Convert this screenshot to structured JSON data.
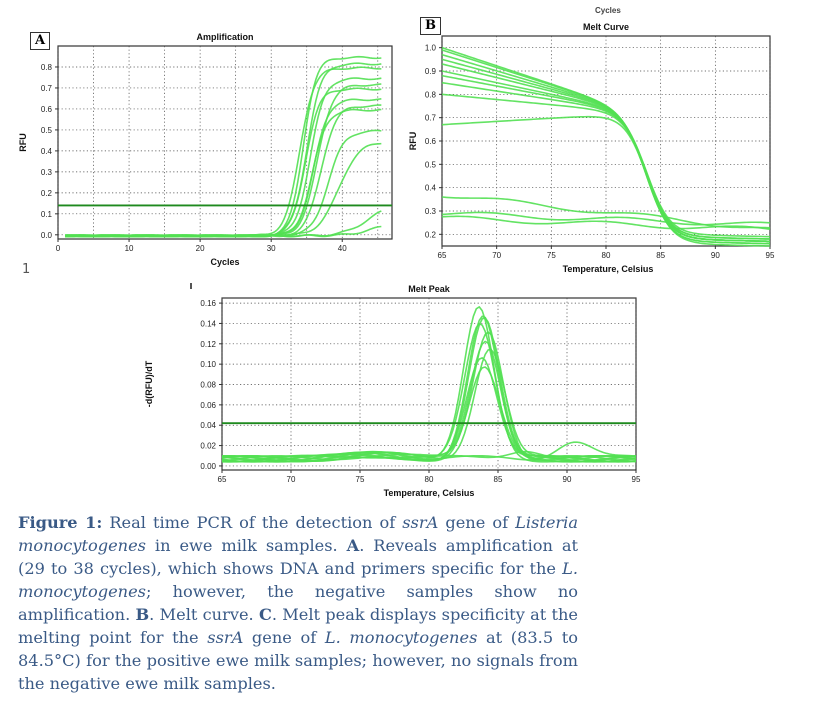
{
  "colors": {
    "curve": "#52e052",
    "threshold": "#1e8a1e",
    "grid": "#444444",
    "caption": "#3a5a86"
  },
  "panels": {
    "a": "A",
    "b": "B"
  },
  "top_cut_text": "Cycles",
  "stray_text": "1",
  "caption": {
    "figure_label": "Figure 1:",
    "text_1": " Real time PCR of the detection of ",
    "gene_1": "ssrA",
    "text_2": " gene of ",
    "species_1": "Listeria monocytogenes",
    "text_3": " in ewe milk samples. ",
    "label_a": "A",
    "text_4": ". Reveals amplification at (29 to 38 cycles), which shows DNA and primers specific for the ",
    "species_2": "L. monocytogenes",
    "text_5": "; however, the negative samples show no amplification. ",
    "label_b": "B",
    "text_6": ". Melt curve. ",
    "label_c": "C",
    "text_7": ". Melt peak displays specificity at the melting point for the ",
    "gene_2": "ssrA",
    "text_8": " gene of ",
    "species_3": "L. monocytogenes",
    "text_9": " at (83.5 to 84.5°C) for the positive ewe milk samples; however, no signals from the negative ewe milk samples."
  },
  "chart_data": [
    {
      "type": "line",
      "title": "Amplification",
      "xlabel": "Cycles",
      "ylabel": "RFU",
      "xlim": [
        0,
        47
      ],
      "ylim": [
        -0.02,
        0.9
      ],
      "xticks": [
        0,
        10,
        20,
        30,
        40
      ],
      "yticks": [
        0.0,
        0.1,
        0.2,
        0.3,
        0.4,
        0.5,
        0.6,
        0.7,
        0.8
      ],
      "threshold": 0.14,
      "grid": true,
      "series_params": [
        {
          "max": 0.85,
          "mid": 34.5,
          "slope": 1.1
        },
        {
          "max": 0.82,
          "mid": 35.0,
          "slope": 1.0
        },
        {
          "max": 0.8,
          "mid": 34.0,
          "slope": 1.0
        },
        {
          "max": 0.75,
          "mid": 35.5,
          "slope": 1.0
        },
        {
          "max": 0.7,
          "mid": 34.8,
          "slope": 1.05
        },
        {
          "max": 0.72,
          "mid": 36.5,
          "slope": 0.95
        },
        {
          "max": 0.65,
          "mid": 36.0,
          "slope": 1.0
        },
        {
          "max": 0.62,
          "mid": 37.0,
          "slope": 0.95
        },
        {
          "max": 0.6,
          "mid": 35.8,
          "slope": 1.0
        },
        {
          "max": 0.5,
          "mid": 38.0,
          "slope": 0.9
        },
        {
          "max": 0.45,
          "mid": 39.5,
          "slope": 0.7
        },
        {
          "max": 0.15,
          "mid": 43.5,
          "slope": 0.6
        },
        {
          "max": 0.06,
          "mid": 44.0,
          "slope": 0.6
        }
      ]
    },
    {
      "type": "line",
      "title": "Melt Curve",
      "xlabel": "Temperature, Celsius",
      "ylabel": "RFU",
      "xlim": [
        65,
        95
      ],
      "ylim": [
        0.15,
        1.05
      ],
      "xticks": [
        65,
        70,
        75,
        80,
        85,
        90,
        95
      ],
      "yticks": [
        0.2,
        0.3,
        0.4,
        0.5,
        0.6,
        0.7,
        0.8,
        0.9,
        1.0
      ],
      "grid": true,
      "series_params": [
        {
          "start": 1.0,
          "low": 0.17
        },
        {
          "start": 0.99,
          "low": 0.18
        },
        {
          "start": 0.97,
          "low": 0.17
        },
        {
          "start": 0.95,
          "low": 0.19
        },
        {
          "start": 0.93,
          "low": 0.18
        },
        {
          "start": 0.9,
          "low": 0.2
        },
        {
          "start": 0.88,
          "low": 0.18
        },
        {
          "start": 0.85,
          "low": 0.19
        },
        {
          "start": 0.8,
          "low": 0.18
        },
        {
          "start": 0.67,
          "low": 0.16
        },
        {
          "start": 0.37,
          "low": 0.22
        },
        {
          "start": 0.29,
          "low": 0.24
        },
        {
          "start": 0.27,
          "low": 0.22
        }
      ]
    },
    {
      "type": "line",
      "title": "Melt Peak",
      "xlabel": "Temperature, Celsius",
      "ylabel": "-d(RFU)/dT",
      "xlim": [
        65,
        95
      ],
      "ylim": [
        -0.004,
        0.165
      ],
      "xticks": [
        65,
        70,
        75,
        80,
        85,
        90,
        95
      ],
      "yticks": [
        0.0,
        0.02,
        0.04,
        0.06,
        0.08,
        0.1,
        0.12,
        0.14,
        0.16
      ],
      "ytick_labels": [
        "0.00",
        "0.02",
        "0.04",
        "0.06",
        "0.08",
        "0.10",
        "0.12",
        "0.14",
        "0.16"
      ],
      "threshold": 0.042,
      "grid": true,
      "series_params": [
        {
          "peak": 0.152,
          "center": 83.6
        },
        {
          "peak": 0.14,
          "center": 83.9
        },
        {
          "peak": 0.136,
          "center": 84.0
        },
        {
          "peak": 0.13,
          "center": 83.7
        },
        {
          "peak": 0.125,
          "center": 84.3
        },
        {
          "peak": 0.118,
          "center": 84.1
        },
        {
          "peak": 0.11,
          "center": 84.4
        },
        {
          "peak": 0.1,
          "center": 83.8
        },
        {
          "peak": 0.088,
          "center": 84.0
        },
        {
          "peak": 0.018,
          "center": 90.5
        },
        {
          "peak": 0.01,
          "center": 87.0
        }
      ]
    }
  ]
}
